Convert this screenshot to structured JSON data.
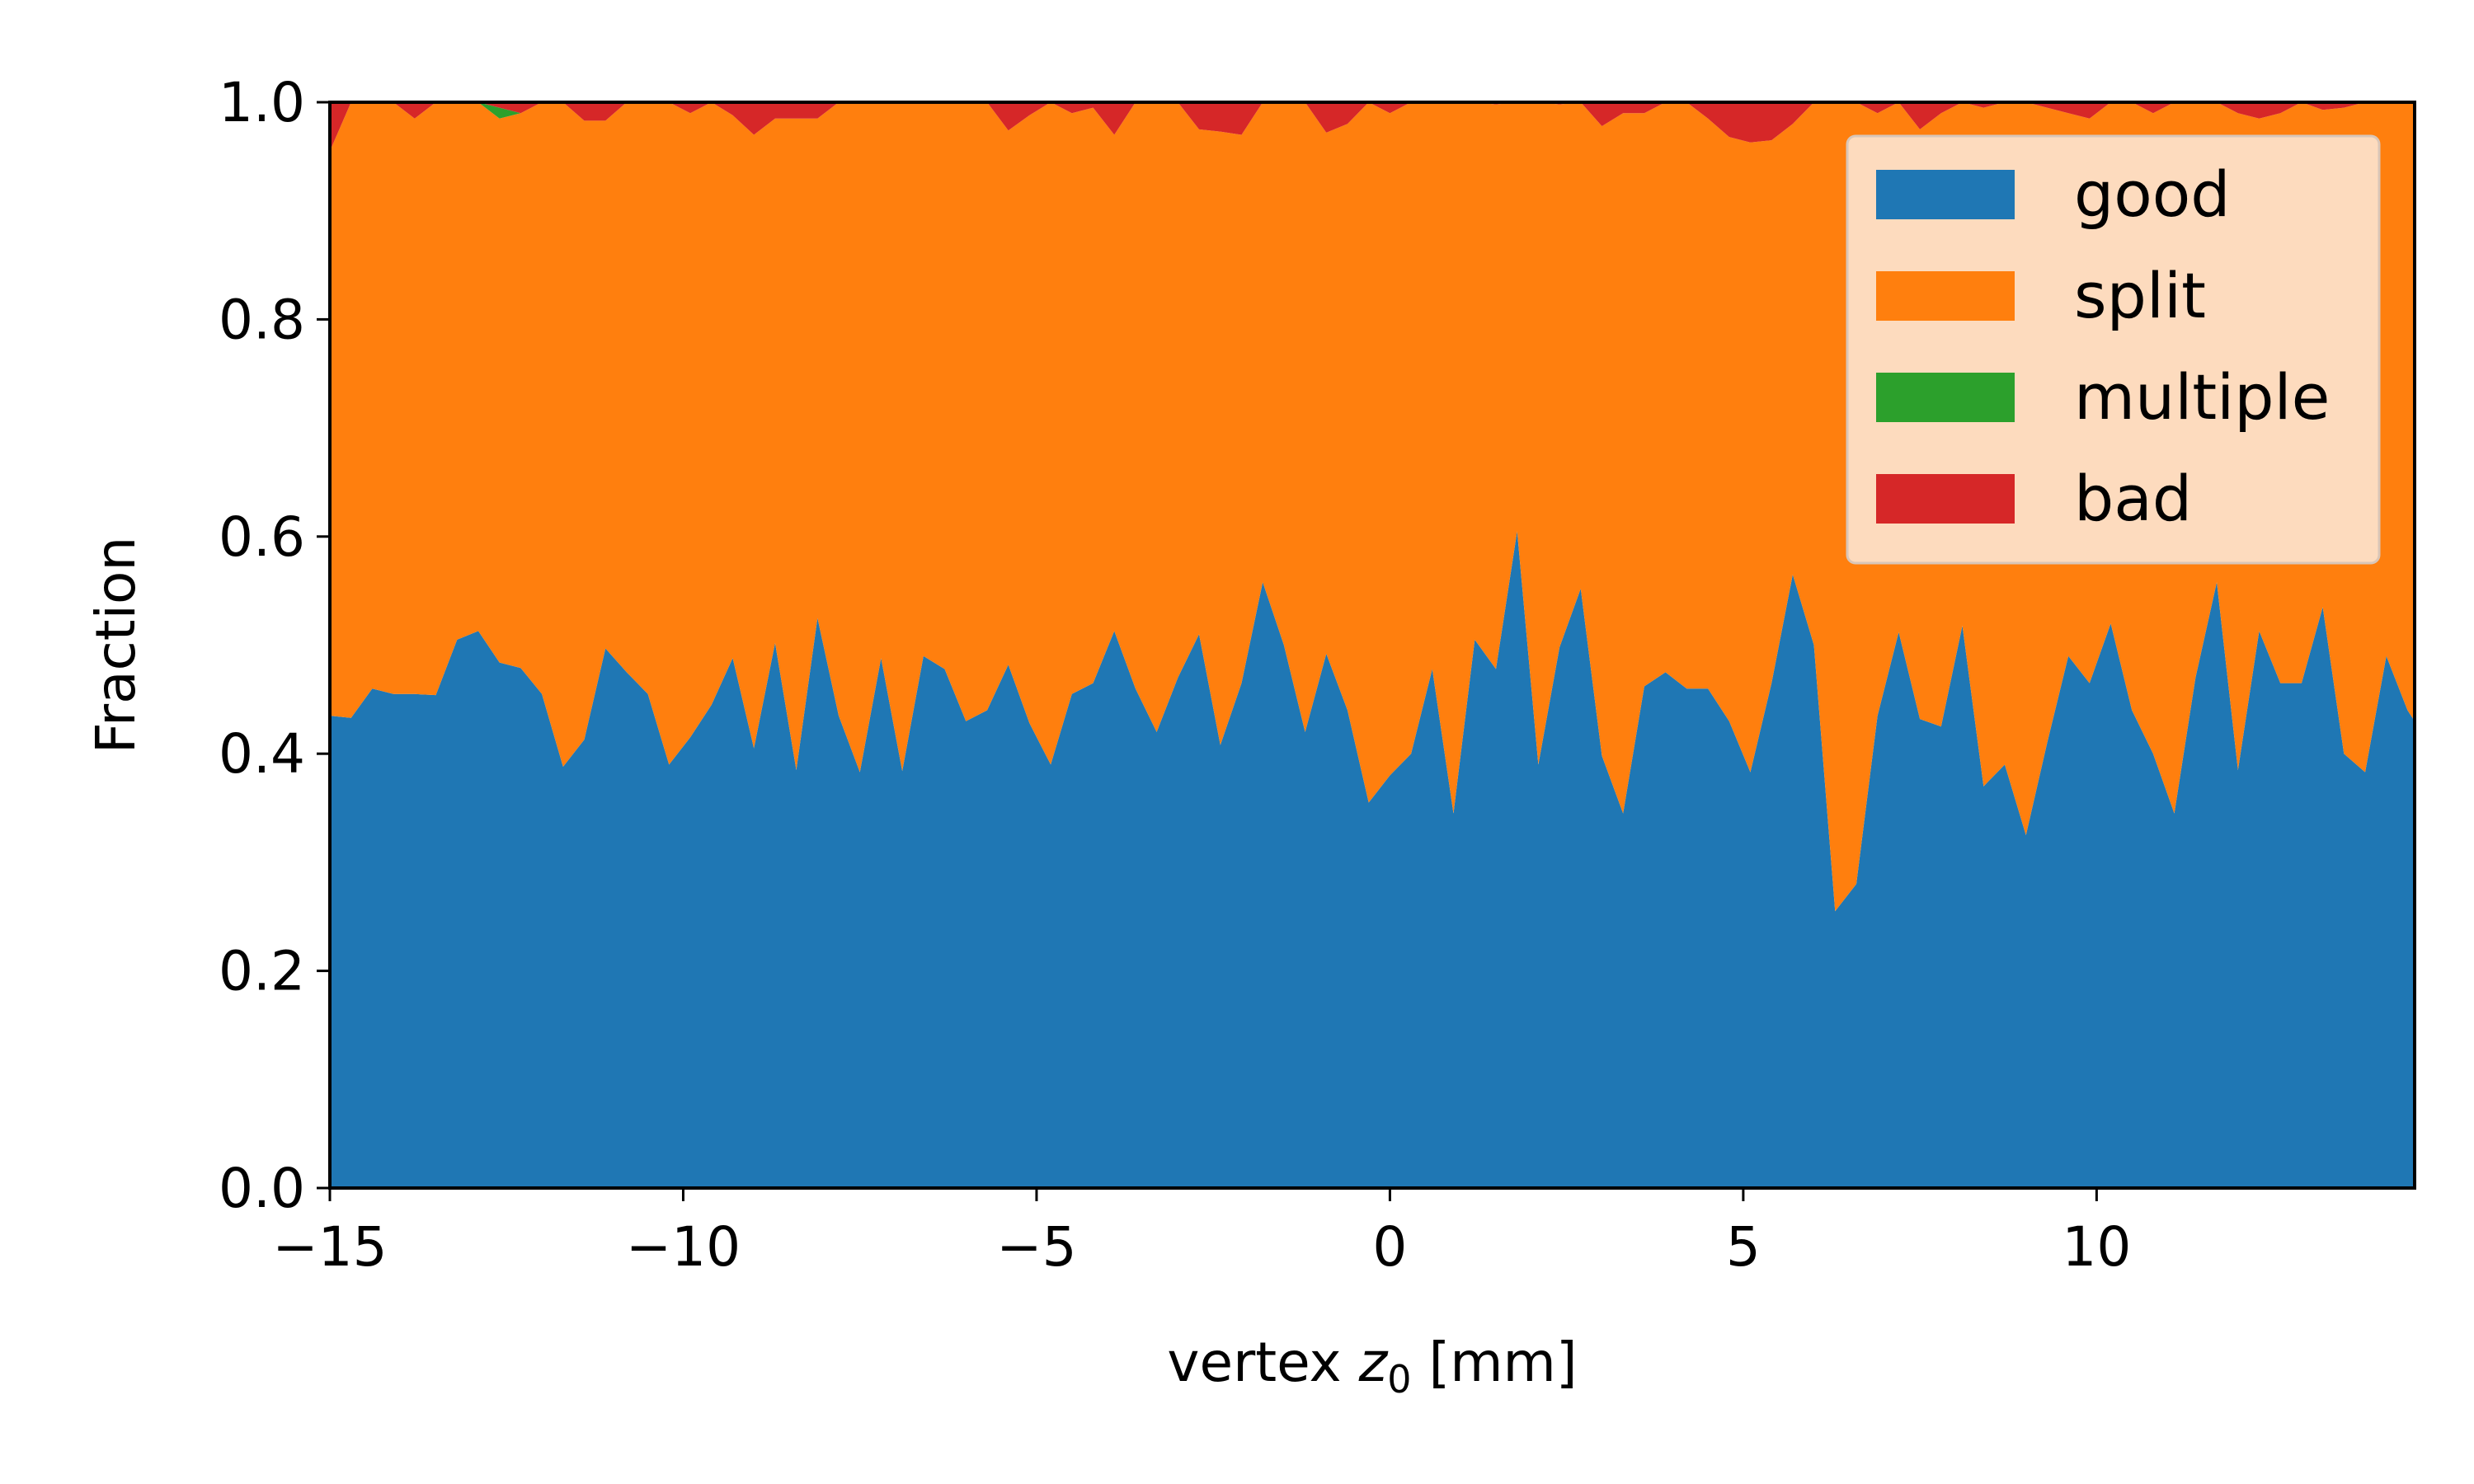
{
  "chart_data": {
    "type": "area",
    "stacked": true,
    "title": "",
    "xlabel_prefix": "vertex ",
    "xlabel_var": "z",
    "xlabel_sub": "0",
    "xlabel_suffix": " [mm]",
    "ylabel": "Fraction",
    "xlim": [
      -15,
      14.5
    ],
    "ylim": [
      0,
      1
    ],
    "xticks": [
      -15,
      -10,
      -5,
      0,
      5,
      10
    ],
    "xtick_labels": [
      "−15",
      "−10",
      "−5",
      "0",
      "5",
      "10"
    ],
    "yticks": [
      0,
      0.2,
      0.4,
      0.6,
      0.8,
      1.0
    ],
    "ytick_labels": [
      "0.0",
      "0.2",
      "0.4",
      "0.6",
      "0.8",
      "1.0"
    ],
    "grid": false,
    "legend_position": "top-right",
    "x": [
      -15.0,
      -14.7,
      -14.4,
      -14.1,
      -13.8,
      -13.5,
      -13.2,
      -12.9,
      -12.6,
      -12.3,
      -12.0,
      -11.7,
      -11.4,
      -11.1,
      -10.8,
      -10.5,
      -10.2,
      -9.9,
      -9.6,
      -9.3,
      -9.0,
      -8.7,
      -8.4,
      -8.1,
      -7.8,
      -7.5,
      -7.2,
      -6.9,
      -6.6,
      -6.3,
      -6.0,
      -5.7,
      -5.4,
      -5.1,
      -4.8,
      -4.5,
      -4.2,
      -3.9,
      -3.6,
      -3.3,
      -3.0,
      -2.7,
      -2.4,
      -2.1,
      -1.8,
      -1.5,
      -1.2,
      -0.9,
      -0.6,
      -0.3,
      0.0,
      0.3,
      0.6,
      0.9,
      1.2,
      1.5,
      1.8,
      2.1,
      2.4,
      2.7,
      3.0,
      3.3,
      3.6,
      3.9,
      4.2,
      4.5,
      4.8,
      5.1,
      5.4,
      5.7,
      6.0,
      6.3,
      6.6,
      6.9,
      7.2,
      7.5,
      7.8,
      8.1,
      8.4,
      8.7,
      9.0,
      9.3,
      9.6,
      9.9,
      10.2,
      10.5,
      10.8,
      11.1,
      11.4,
      11.7,
      12.0,
      12.3,
      12.6,
      12.9,
      13.2,
      13.5,
      13.8,
      14.1,
      14.4,
      14.5
    ],
    "series": [
      {
        "name": "good",
        "color": "#1f77b4",
        "values": [
          0.435,
          0.433,
          0.46,
          0.455,
          0.455,
          0.454,
          0.505,
          0.513,
          0.484,
          0.479,
          0.455,
          0.388,
          0.413,
          0.497,
          0.475,
          0.455,
          0.39,
          0.415,
          0.445,
          0.488,
          0.405,
          0.502,
          0.385,
          0.525,
          0.435,
          0.383,
          0.488,
          0.384,
          0.49,
          0.478,
          0.43,
          0.44,
          0.482,
          0.428,
          0.39,
          0.455,
          0.465,
          0.513,
          0.46,
          0.42,
          0.47,
          0.51,
          0.408,
          0.465,
          0.558,
          0.5,
          0.42,
          0.492,
          0.44,
          0.355,
          0.38,
          0.4,
          0.478,
          0.345,
          0.505,
          0.478,
          0.605,
          0.39,
          0.498,
          0.552,
          0.398,
          0.345,
          0.462,
          0.475,
          0.46,
          0.46,
          0.43,
          0.383,
          0.465,
          0.565,
          0.5,
          0.255,
          0.28,
          0.435,
          0.512,
          0.432,
          0.425,
          0.518,
          0.37,
          0.39,
          0.325,
          0.41,
          0.49,
          0.465,
          0.52,
          0.44,
          0.4,
          0.345,
          0.47,
          0.558,
          0.385,
          0.513,
          0.465,
          0.465,
          0.535,
          0.4,
          0.383,
          0.49,
          0.44,
          0.43
        ]
      },
      {
        "name": "split",
        "color": "#ff7f0e",
        "values": [
          0.52,
          0.567,
          0.54,
          0.545,
          0.53,
          0.546,
          0.495,
          0.487,
          0.501,
          0.511,
          0.545,
          0.612,
          0.57,
          0.486,
          0.525,
          0.545,
          0.61,
          0.575,
          0.555,
          0.5,
          0.565,
          0.483,
          0.6,
          0.46,
          0.565,
          0.617,
          0.512,
          0.616,
          0.51,
          0.522,
          0.57,
          0.56,
          0.492,
          0.56,
          0.61,
          0.535,
          0.53,
          0.457,
          0.54,
          0.58,
          0.53,
          0.465,
          0.565,
          0.505,
          0.442,
          0.5,
          0.58,
          0.48,
          0.54,
          0.645,
          0.61,
          0.6,
          0.522,
          0.655,
          0.495,
          0.52,
          0.395,
          0.61,
          0.5,
          0.448,
          0.58,
          0.645,
          0.528,
          0.525,
          0.54,
          0.525,
          0.538,
          0.58,
          0.5,
          0.415,
          0.5,
          0.745,
          0.72,
          0.555,
          0.488,
          0.543,
          0.565,
          0.482,
          0.625,
          0.61,
          0.675,
          0.585,
          0.5,
          0.52,
          0.48,
          0.56,
          0.59,
          0.655,
          0.53,
          0.442,
          0.605,
          0.472,
          0.525,
          0.535,
          0.458,
          0.595,
          0.617,
          0.51,
          0.56,
          0.57
        ]
      },
      {
        "name": "multiple",
        "color": "#2ca02c",
        "values": [
          0,
          0,
          0,
          0,
          0,
          0,
          0,
          0,
          0.01,
          0,
          0,
          0,
          0,
          0,
          0,
          0,
          0,
          0,
          0,
          0,
          0,
          0,
          0,
          0,
          0,
          0,
          0,
          0,
          0,
          0,
          0,
          0,
          0,
          0,
          0,
          0,
          0,
          0,
          0,
          0,
          0,
          0,
          0,
          0,
          0,
          0,
          0,
          0,
          0,
          0,
          0,
          0,
          0,
          0,
          0,
          0,
          0,
          0,
          0,
          0,
          0,
          0,
          0,
          0,
          0,
          0,
          0,
          0,
          0,
          0,
          0,
          0,
          0,
          0,
          0,
          0,
          0,
          0,
          0,
          0,
          0,
          0,
          0,
          0,
          0,
          0,
          0,
          0,
          0,
          0,
          0,
          0,
          0,
          0,
          0,
          0,
          0,
          0,
          0,
          0
        ]
      },
      {
        "name": "bad",
        "color": "#d62728",
        "values": [
          0.045,
          0,
          0,
          0,
          0.015,
          0,
          0,
          0,
          0.005,
          0.01,
          0,
          0,
          0.017,
          0.017,
          0,
          0,
          0,
          0.01,
          0,
          0.012,
          0.03,
          0.015,
          0.015,
          0.015,
          0,
          0,
          0,
          0,
          0,
          0,
          0,
          0,
          0.026,
          0.012,
          0,
          0.01,
          0.005,
          0.03,
          0,
          0,
          0,
          0.025,
          0.027,
          0.03,
          0,
          0,
          0,
          0.028,
          0.02,
          0,
          0.01,
          0,
          0,
          0,
          0,
          0.002,
          0,
          0,
          0.002,
          0,
          0.022,
          0.01,
          0.01,
          0,
          0,
          0.015,
          0.032,
          0.037,
          0.035,
          0.02,
          0,
          0,
          0,
          0.01,
          0,
          0.025,
          0.01,
          0,
          0.005,
          0,
          0,
          0.005,
          0.01,
          0.015,
          0,
          0,
          0.01,
          0,
          0,
          0,
          0.01,
          0.015,
          0.01,
          0,
          0.007,
          0.005,
          0,
          0,
          0,
          0
        ]
      }
    ]
  }
}
